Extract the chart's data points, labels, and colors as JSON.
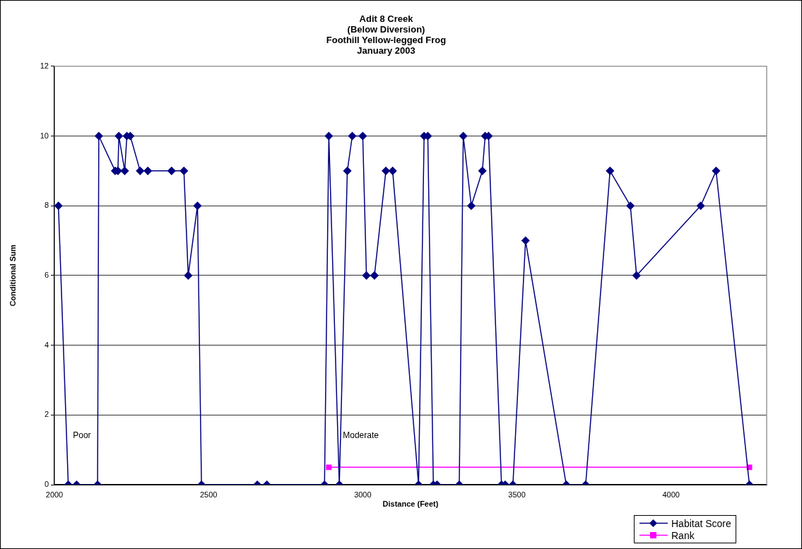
{
  "chart_data": {
    "type": "line",
    "title": "Adit 8 Creek\n(Below Diversion)\nFoothill Yellow-legged Frog\nJanuary 2003",
    "xlabel": "Distance (Feet)",
    "ylabel": "Conditional Sum",
    "xlim": [
      2000,
      4310
    ],
    "xticks": [
      2000,
      2500,
      3000,
      3500,
      4000
    ],
    "ylim": [
      0,
      12
    ],
    "yticks": [
      0,
      2,
      4,
      6,
      8,
      10,
      12
    ],
    "grid": "y",
    "legend": "bottom right",
    "series": [
      {
        "name": "Habitat Score",
        "color": "#000080",
        "marker": "diamond",
        "x": [
          2013,
          2045,
          2072,
          2140,
          2144,
          2197,
          2206,
          2209,
          2228,
          2235,
          2246,
          2278,
          2303,
          2380,
          2420,
          2434,
          2464,
          2477,
          2658,
          2689,
          2876,
          2890,
          2924,
          2950,
          2966,
          3000,
          3012,
          3038,
          3075,
          3097,
          3181,
          3199,
          3211,
          3229,
          3241,
          3313,
          3326,
          3352,
          3388,
          3397,
          3408,
          3450,
          3462,
          3487,
          3528,
          3660,
          3723,
          3802,
          3868,
          3888,
          4096,
          4146,
          4254
        ],
        "values": [
          8,
          0,
          0,
          0,
          10,
          9,
          9,
          10,
          9,
          10,
          10,
          9,
          9,
          9,
          9,
          6,
          8,
          0,
          0,
          0,
          0,
          10,
          0,
          9,
          10,
          10,
          6,
          6,
          9,
          9,
          0,
          10,
          10,
          0,
          0,
          0,
          10,
          8,
          9,
          10,
          10,
          0,
          0,
          0,
          7,
          0,
          0,
          9,
          8,
          6,
          8,
          9,
          0
        ]
      },
      {
        "name": "Rank",
        "color": "#ff00ff",
        "marker": "square",
        "x": [
          2890,
          4254
        ],
        "values": [
          0.5,
          0.5
        ]
      }
    ],
    "annotations": [
      "Poor",
      "Moderate"
    ]
  }
}
